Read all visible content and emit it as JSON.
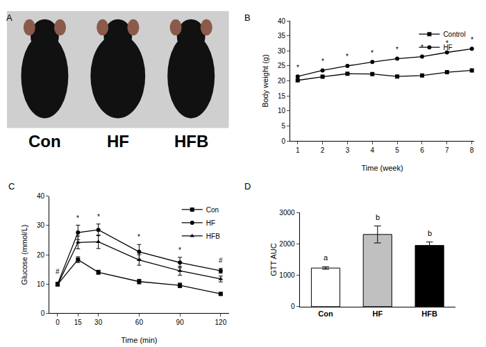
{
  "photo": {
    "panel": "A",
    "labels": [
      "Con",
      "HF",
      "HFB"
    ]
  },
  "chart_data": [
    {
      "panel": "B",
      "type": "line",
      "x": [
        1,
        2,
        3,
        4,
        5,
        6,
        7,
        8
      ],
      "series": [
        {
          "name": "Control",
          "color": "#000000",
          "marker": "square",
          "line_style": "solid",
          "values": [
            20.2,
            21.4,
            22.4,
            22.3,
            21.5,
            21.8,
            22.9,
            23.5
          ]
        },
        {
          "name": "HF",
          "color": "#000000",
          "marker": "circle",
          "line_style": "solid",
          "values": [
            21.5,
            23.5,
            25.0,
            26.3,
            27.4,
            28.1,
            29.5,
            30.7
          ]
        }
      ],
      "xlabel": "Time (week)",
      "ylabel": "Body weight (g)",
      "xlim": [
        0.7,
        8.1
      ],
      "xticks": [
        1,
        2,
        3,
        4,
        5,
        6,
        7,
        8
      ],
      "ylim": [
        0,
        40
      ],
      "yticks": [
        0,
        5,
        10,
        15,
        20,
        25,
        30,
        35,
        40
      ],
      "grid": false,
      "legend": "upper right",
      "annotations": [
        {
          "x": 1,
          "y": 22.8,
          "text": "*"
        },
        {
          "x": 2,
          "y": 24.8,
          "text": "*"
        },
        {
          "x": 3,
          "y": 26.3,
          "text": "*"
        },
        {
          "x": 4,
          "y": 27.6,
          "text": "*"
        },
        {
          "x": 5,
          "y": 28.7,
          "text": "*"
        },
        {
          "x": 6,
          "y": 29.4,
          "text": "*"
        },
        {
          "x": 7,
          "y": 30.8,
          "text": "*"
        },
        {
          "x": 8,
          "y": 32.0,
          "text": "*"
        }
      ]
    },
    {
      "panel": "C",
      "type": "line",
      "x": [
        0,
        15,
        30,
        60,
        90,
        120
      ],
      "series": [
        {
          "name": "Con",
          "color": "#000000",
          "marker": "square",
          "line_style": "solid",
          "values": [
            9.8,
            18.3,
            14.0,
            10.8,
            9.5,
            6.6
          ],
          "errors": [
            0.5,
            1.0,
            0.7,
            0.8,
            0.8,
            0.5
          ]
        },
        {
          "name": "HF",
          "color": "#000000",
          "marker": "circle",
          "line_style": "solid",
          "values": [
            10.0,
            27.6,
            28.5,
            21.0,
            17.3,
            14.5
          ],
          "errors": [
            0.6,
            2.5,
            2.0,
            2.5,
            1.8,
            0.8
          ]
        },
        {
          "name": "HFB",
          "color": "#000000",
          "marker": "triangle-up",
          "line_style": "solid",
          "values": [
            9.7,
            24.2,
            24.4,
            18.2,
            14.5,
            11.7
          ],
          "errors": [
            0.5,
            2.2,
            2.3,
            1.8,
            1.5,
            1.0
          ]
        }
      ],
      "xlabel": "Time (min)",
      "ylabel": "Glucose (mmol/L)",
      "xlim": [
        -6,
        126
      ],
      "xticks": [
        0,
        15,
        30,
        60,
        90,
        120
      ],
      "ylim": [
        0,
        40
      ],
      "yticks": [
        0,
        10,
        20,
        30,
        40
      ],
      "grid": false,
      "legend": "upper right",
      "annotations": [
        {
          "x": 0,
          "y": 12.5,
          "text": "#"
        },
        {
          "x": 15,
          "y": 30.8,
          "text": "*"
        },
        {
          "x": 30,
          "y": 31.2,
          "text": "*"
        },
        {
          "x": 60,
          "y": 24.2,
          "text": "*"
        },
        {
          "x": 90,
          "y": 19.8,
          "text": "*"
        },
        {
          "x": 120,
          "y": 16.2,
          "text": "#"
        }
      ]
    },
    {
      "panel": "D",
      "type": "bar",
      "categories": [
        "Con",
        "HF",
        "HFB"
      ],
      "values": [
        1230,
        2300,
        1950
      ],
      "errors": [
        40,
        270,
        110
      ],
      "colors": [
        "#ffffff",
        "#c0c0c0",
        "#000000"
      ],
      "ylabel": "GTT AUC",
      "ylim": [
        0,
        3000
      ],
      "yticks": [
        0,
        1000,
        2000,
        3000
      ],
      "grid": false,
      "annotations": [
        {
          "category": "Con",
          "y": 1380,
          "text": "a"
        },
        {
          "category": "HF",
          "y": 2680,
          "text": "b"
        },
        {
          "category": "HFB",
          "y": 2170,
          "text": "b"
        }
      ]
    }
  ]
}
